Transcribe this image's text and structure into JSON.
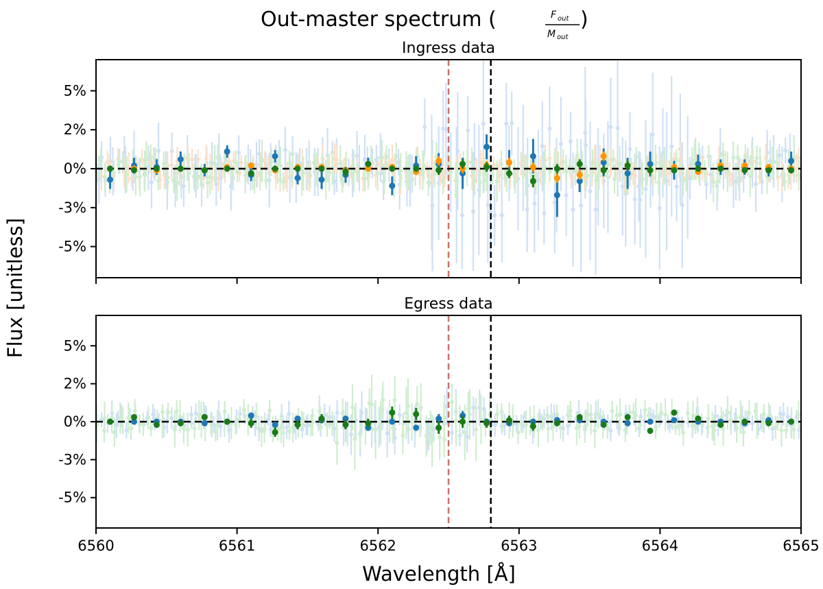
{
  "chart_data": {
    "type": "scatter",
    "title": "Out-master spectrum (",
    "title_fraction": {
      "numerator": "F",
      "numerator_sub": "out",
      "denominator": "M",
      "denominator_sub": "out"
    },
    "title_close": ")",
    "xlabel": "Wavelength [Å]",
    "ylabel": "Flux [unitless]",
    "xlim": [
      6560,
      6565
    ],
    "ylim": [
      -0.07,
      0.07
    ],
    "xticks": [
      6560,
      6561,
      6562,
      6563,
      6564,
      6565
    ],
    "xtick_labels": [
      "6560",
      "6561",
      "6562",
      "6563",
      "6564",
      "6565"
    ],
    "yticks": [
      0.05,
      0.025,
      0,
      -0.025,
      -0.05
    ],
    "ytick_labels": [
      "5%",
      "2%",
      "0%",
      "-3%",
      "-5%"
    ],
    "reference_lines": [
      {
        "orientation": "vertical",
        "x": 6562.5,
        "color": "#c9706a",
        "style": "dashed"
      },
      {
        "orientation": "vertical",
        "x": 6562.8,
        "color": "#000000",
        "style": "dashed"
      },
      {
        "orientation": "horizontal",
        "y": 0,
        "color": "#000000",
        "style": "dashed"
      }
    ],
    "colors": {
      "blue": "#1f77b4",
      "orange": "#ff9500",
      "green": "#1a7a1a",
      "light_blue": "#a9c8ee",
      "light_orange": "#f5c8a0",
      "light_green": "#a8e0a8"
    },
    "panels": [
      {
        "title": "Ingress data",
        "series": [
          {
            "name": "blue",
            "x": [
              6560.1,
              6560.27,
              6560.43,
              6560.6,
              6560.77,
              6560.93,
              6561.1,
              6561.27,
              6561.43,
              6561.6,
              6561.77,
              6561.93,
              6562.1,
              6562.27,
              6562.43,
              6562.6,
              6562.77,
              6562.93,
              6563.1,
              6563.27,
              6563.43,
              6563.6,
              6563.77,
              6563.93,
              6564.1,
              6564.27,
              6564.43,
              6564.6,
              6564.77,
              6564.93
            ],
            "y": [
              -0.007,
              0.002,
              0.001,
              0.006,
              -0.001,
              0.011,
              -0.004,
              0.008,
              -0.006,
              -0.007,
              -0.004,
              0.003,
              -0.011,
              0.002,
              0.003,
              -0.003,
              0.014,
              0.004,
              0.008,
              -0.017,
              -0.008,
              0.004,
              -0.003,
              0.003,
              -0.001,
              0.003,
              0.001,
              0.001,
              -0.001,
              0.005
            ],
            "err": [
              0.006,
              0.005,
              0.005,
              0.005,
              0.004,
              0.004,
              0.004,
              0.004,
              0.004,
              0.006,
              0.005,
              0.004,
              0.006,
              0.006,
              0.007,
              0.01,
              0.008,
              0.008,
              0.011,
              0.014,
              0.007,
              0.009,
              0.01,
              0.008,
              0.006,
              0.006,
              0.005,
              0.005,
              0.004,
              0.006
            ]
          },
          {
            "name": "orange",
            "x": [
              6560.1,
              6560.27,
              6560.43,
              6560.6,
              6560.77,
              6560.93,
              6561.1,
              6561.27,
              6561.43,
              6561.6,
              6561.77,
              6561.93,
              6562.1,
              6562.27,
              6562.43,
              6562.6,
              6562.77,
              6562.93,
              6563.1,
              6563.27,
              6563.43,
              6563.6,
              6563.77,
              6563.93,
              6564.1,
              6564.27,
              6564.43,
              6564.6,
              6564.77,
              6564.93
            ],
            "y": [
              0,
              0,
              -0.001,
              0,
              -0.001,
              0.001,
              0.002,
              -0.001,
              0.001,
              0.001,
              -0.001,
              0,
              0.001,
              -0.002,
              0.005,
              0,
              0.002,
              0.004,
              0.001,
              -0.006,
              -0.004,
              0.008,
              0.002,
              -0.001,
              0.001,
              -0.002,
              0.002,
              0.002,
              0.001,
              0
            ],
            "err": [
              0.002,
              0.002,
              0.002,
              0.002,
              0.002,
              0.002,
              0.002,
              0.002,
              0.002,
              0.002,
              0.002,
              0.002,
              0.002,
              0.002,
              0.003,
              0.003,
              0.003,
              0.003,
              0.003,
              0.003,
              0.003,
              0.003,
              0.003,
              0.003,
              0.002,
              0.002,
              0.002,
              0.002,
              0.002,
              0.002
            ]
          },
          {
            "name": "green",
            "x": [
              6560.1,
              6560.27,
              6560.43,
              6560.6,
              6560.77,
              6560.93,
              6561.1,
              6561.27,
              6561.43,
              6561.6,
              6561.77,
              6561.93,
              6562.1,
              6562.27,
              6562.43,
              6562.6,
              6562.77,
              6562.93,
              6563.1,
              6563.27,
              6563.43,
              6563.6,
              6563.77,
              6563.93,
              6564.1,
              6564.27,
              6564.43,
              6564.6,
              6564.77,
              6564.93
            ],
            "y": [
              0,
              -0.001,
              0,
              0,
              -0.001,
              0,
              -0.003,
              0,
              0,
              0,
              -0.002,
              0.003,
              0,
              0,
              -0.001,
              0.003,
              0.001,
              -0.003,
              -0.008,
              0,
              0.003,
              -0.001,
              0.002,
              -0.001,
              -0.001,
              0,
              0,
              -0.001,
              -0.001,
              -0.001
            ],
            "err": [
              0.002,
              0.002,
              0.002,
              0.002,
              0.002,
              0.002,
              0.002,
              0.002,
              0.002,
              0.002,
              0.003,
              0.002,
              0.002,
              0.002,
              0.003,
              0.003,
              0.003,
              0.003,
              0.004,
              0.003,
              0.003,
              0.003,
              0.003,
              0.003,
              0.002,
              0.002,
              0.002,
              0.002,
              0.002,
              0.002
            ]
          }
        ]
      },
      {
        "title": "Egress data",
        "series": [
          {
            "name": "blue",
            "x": [
              6560.1,
              6560.27,
              6560.43,
              6560.6,
              6560.77,
              6560.93,
              6561.1,
              6561.27,
              6561.43,
              6561.6,
              6561.77,
              6561.93,
              6562.1,
              6562.27,
              6562.43,
              6562.6,
              6562.77,
              6562.93,
              6563.1,
              6563.27,
              6563.43,
              6563.6,
              6563.77,
              6563.93,
              6564.1,
              6564.27,
              6564.43,
              6564.6,
              6564.77,
              6564.93
            ],
            "y": [
              0,
              0,
              0,
              0,
              -0.001,
              0,
              0.004,
              -0.002,
              0.002,
              0.001,
              0.002,
              -0.004,
              0,
              -0.004,
              0.002,
              0.004,
              0,
              -0.001,
              0,
              0.001,
              0.001,
              0,
              -0.001,
              0,
              0.001,
              0,
              0,
              -0.001,
              0.001,
              0
            ],
            "err": [
              0.001,
              0.001,
              0.001,
              0.001,
              0.001,
              0.001,
              0.002,
              0.002,
              0.002,
              0.002,
              0.002,
              0.002,
              0.002,
              0.002,
              0.003,
              0.003,
              0.002,
              0.002,
              0.002,
              0.002,
              0.002,
              0.001,
              0.001,
              0.001,
              0.001,
              0.001,
              0.001,
              0.001,
              0.001,
              0.001
            ]
          },
          {
            "name": "green",
            "x": [
              6560.1,
              6560.27,
              6560.43,
              6560.6,
              6560.77,
              6560.93,
              6561.1,
              6561.27,
              6561.43,
              6561.6,
              6561.77,
              6561.93,
              6562.1,
              6562.27,
              6562.43,
              6562.6,
              6562.77,
              6562.93,
              6563.1,
              6563.27,
              6563.43,
              6563.6,
              6563.77,
              6563.93,
              6564.1,
              6564.27,
              6564.43,
              6564.6,
              6564.77,
              6564.93
            ],
            "y": [
              0,
              0.003,
              -0.002,
              -0.001,
              0.003,
              0,
              -0.001,
              -0.007,
              -0.002,
              0.002,
              -0.002,
              -0.001,
              0.006,
              0.005,
              -0.004,
              0,
              -0.001,
              0.001,
              -0.003,
              -0.001,
              0.003,
              -0.002,
              0.003,
              -0.006,
              0.006,
              0.002,
              -0.002,
              0,
              -0.001,
              0
            ],
            "err": [
              0.002,
              0.002,
              0.002,
              0.002,
              0.002,
              0.002,
              0.003,
              0.003,
              0.003,
              0.003,
              0.003,
              0.003,
              0.004,
              0.004,
              0.004,
              0.004,
              0.003,
              0.003,
              0.003,
              0.002,
              0.002,
              0.002,
              0.002,
              0.002,
              0.002,
              0.002,
              0.002,
              0.002,
              0.002,
              0.002
            ]
          }
        ]
      }
    ]
  }
}
